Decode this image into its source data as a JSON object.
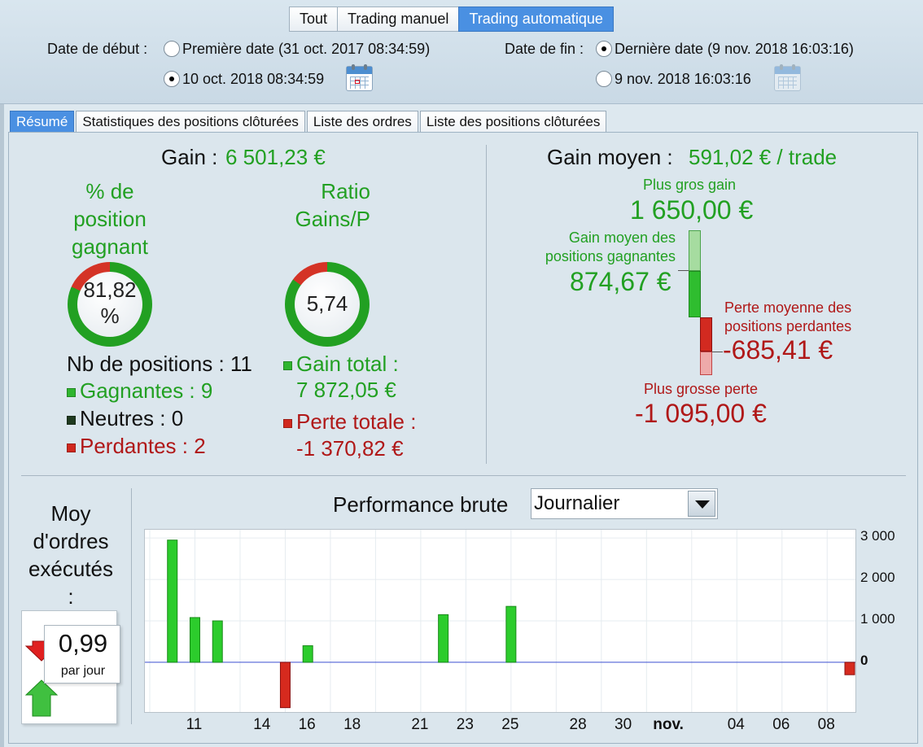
{
  "header": {
    "filter_tabs": [
      "Tout",
      "Trading manuel",
      "Trading automatique"
    ],
    "active_filter": "Trading automatique",
    "start_label": "Date de début :",
    "start_first_option": "Première date (31 oct. 2017 08:34:59)",
    "start_custom_value": "10 oct. 2018 08:34:59",
    "end_label": "Date de fin :",
    "end_last_option": "Dernière date (9 nov. 2018 16:03:16)",
    "end_custom_value": "9 nov. 2018 16:03:16"
  },
  "tabs": [
    "Résumé",
    "Statistiques des positions clôturées",
    "Liste des ordres",
    "Liste des positions clôturées"
  ],
  "summary": {
    "gain_label": "Gain :",
    "gain_value": "6 501,23 €",
    "win_pct_title_1": "% de",
    "win_pct_title_2": "position",
    "win_pct_title_3": "gagnant",
    "win_pct_value_1": "81,82",
    "win_pct_value_2": "%",
    "win_pct_fraction": 0.8182,
    "ratio_title_1": "Ratio",
    "ratio_title_2": "Gains/P",
    "ratio_value": "5,74",
    "ratio_fraction": 0.85,
    "nb_positions": "Nb de positions : 11",
    "winners": "Gagnantes : 9",
    "neutral": "Neutres : 0",
    "losers": "Perdantes : 2",
    "total_gain_label": "Gain total :",
    "total_gain_value": "7 872,05 €",
    "total_loss_label": "Perte totale :",
    "total_loss_value": "-1 370,82 €",
    "avg_gain_label": "Gain moyen :",
    "avg_gain_value": "591,02 € / trade",
    "biggest_gain_label": "Plus gros gain",
    "biggest_gain_value": "1 650,00 €",
    "avg_win_label_1": "Gain moyen des",
    "avg_win_label_2": "positions gagnantes",
    "avg_win_value": "874,67 €",
    "avg_loss_label_1": "Perte moyenne des",
    "avg_loss_label_2": "positions perdantes",
    "avg_loss_value": "-685,41 €",
    "biggest_loss_label": "Plus grosse perte",
    "biggest_loss_value": "-1 095,00 €"
  },
  "orders": {
    "title_1": "Moy",
    "title_2": "d'ordres",
    "title_3": "exécutés",
    "title_4": ":",
    "value": "0,99",
    "unit": "par jour"
  },
  "performance": {
    "title": "Performance brute",
    "period_selected": "Journalier"
  },
  "colors": {
    "gain": "#22a022",
    "loss": "#b01818",
    "accent": "#4a90e2"
  },
  "chart_data": {
    "type": "bar",
    "x_tick_labels": [
      "11",
      "14",
      "16",
      "18",
      "21",
      "23",
      "25",
      "28",
      "30",
      "nov.",
      "04",
      "06",
      "08"
    ],
    "y_tick_labels": [
      "3 000",
      "2 000",
      "1 000",
      "0"
    ],
    "ylim": [
      -1200,
      3200
    ],
    "x_domain": [
      "2018-10-09",
      "2018-11-09"
    ],
    "points": [
      {
        "x": "2018-10-10",
        "y": 2950
      },
      {
        "x": "2018-10-11",
        "y": 1080
      },
      {
        "x": "2018-10-12",
        "y": 1000
      },
      {
        "x": "2018-10-15",
        "y": -1095
      },
      {
        "x": "2018-10-16",
        "y": 400
      },
      {
        "x": "2018-10-22",
        "y": 1150
      },
      {
        "x": "2018-10-25",
        "y": 1350
      },
      {
        "x": "2018-11-09",
        "y": -300
      }
    ]
  }
}
